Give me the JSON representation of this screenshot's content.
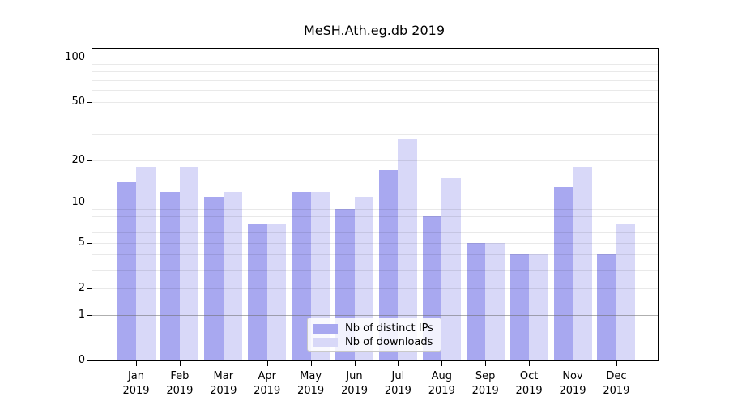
{
  "chart_data": {
    "type": "bar",
    "title": "MeSH.Ath.eg.db 2019",
    "categories": [
      "Jan",
      "Feb",
      "Mar",
      "Apr",
      "May",
      "Jun",
      "Jul",
      "Aug",
      "Sep",
      "Oct",
      "Nov",
      "Dec"
    ],
    "x_year_label": "2019",
    "series": [
      {
        "name": "Nb of distinct IPs",
        "color": "#a8a8f0",
        "values": [
          14,
          12,
          11,
          7,
          12,
          9,
          17,
          8,
          5,
          4,
          13,
          4
        ]
      },
      {
        "name": "Nb of downloads",
        "color": "#d8d8f8",
        "values": [
          18,
          18,
          12,
          7,
          12,
          11,
          28,
          15,
          5,
          4,
          18,
          7
        ]
      }
    ],
    "yaxis": {
      "scale": "log1p",
      "ticks": [
        0,
        1,
        2,
        5,
        10,
        20,
        50,
        100
      ],
      "max": 114,
      "gridlines": [
        1,
        2,
        3,
        4,
        5,
        6,
        7,
        8,
        9,
        10,
        20,
        30,
        40,
        50,
        60,
        70,
        80,
        90,
        100
      ],
      "decade_gridlines": [
        1,
        10,
        100
      ]
    },
    "legend": {
      "position": "bottom-center"
    },
    "colors": {
      "bar_distinct_ips": "#a8a8f0",
      "bar_downloads": "#d8d8f8",
      "grid_minor": "#ebebeb",
      "grid_decade": "#9a9a9a",
      "axis": "#000000",
      "text": "#000000",
      "background": "#ffffff"
    }
  }
}
